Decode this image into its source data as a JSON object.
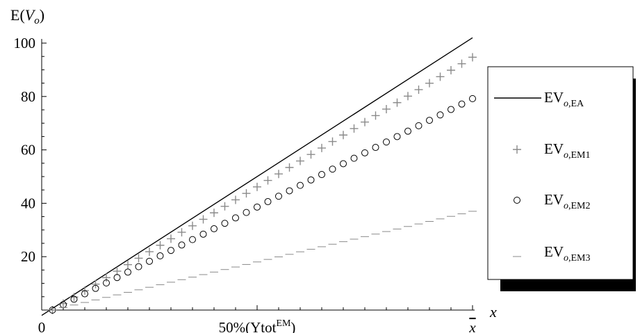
{
  "chart_data": {
    "type": "scatter",
    "y_axis_label": {
      "base": "E(",
      "var": "V",
      "sub": "o",
      "close": ")"
    },
    "x_axis_label": "x",
    "x_ticks": [
      {
        "pos": 0,
        "label": "0"
      },
      {
        "pos": 0.5,
        "label": "50%(Ytot",
        "sup": "EM",
        "after": ")"
      },
      {
        "pos": 1,
        "label": "x",
        "overline": true
      }
    ],
    "y_ticks": [
      20,
      40,
      60,
      80,
      100
    ],
    "y_minor_step": 5,
    "xlim": [
      0,
      1
    ],
    "ylim": [
      0,
      102
    ],
    "grid": false,
    "legend_position": "right",
    "series": [
      {
        "name_base": "EV",
        "name_sub_italic": "o",
        "name_sub": ",EA",
        "marker": "line",
        "color": "#000000",
        "x": [
          0.0,
          1.0
        ],
        "y": [
          -2,
          102
        ]
      },
      {
        "name_base": "EV",
        "name_sub_italic": "o",
        "name_sub": ",EM1",
        "marker": "plus",
        "color": "#8a8a8a",
        "x_start": 0.0,
        "x_end": 1.0,
        "count": 40,
        "y_start": 0,
        "y_end": 94.7
      },
      {
        "name_base": "EV",
        "name_sub_italic": "o",
        "name_sub": ",EM2",
        "marker": "circle",
        "color": "#000000",
        "x_start": 0.0,
        "x_end": 1.0,
        "count": 40,
        "y_start": 0,
        "y_end": 79.2
      },
      {
        "name_base": "EV",
        "name_sub_italic": "o",
        "name_sub": ",EM3",
        "marker": "dash",
        "color": "#8a8a8a",
        "x_start": 0.0,
        "x_end": 1.0,
        "count": 40,
        "y_start": 0,
        "y_end": 37
      }
    ]
  }
}
